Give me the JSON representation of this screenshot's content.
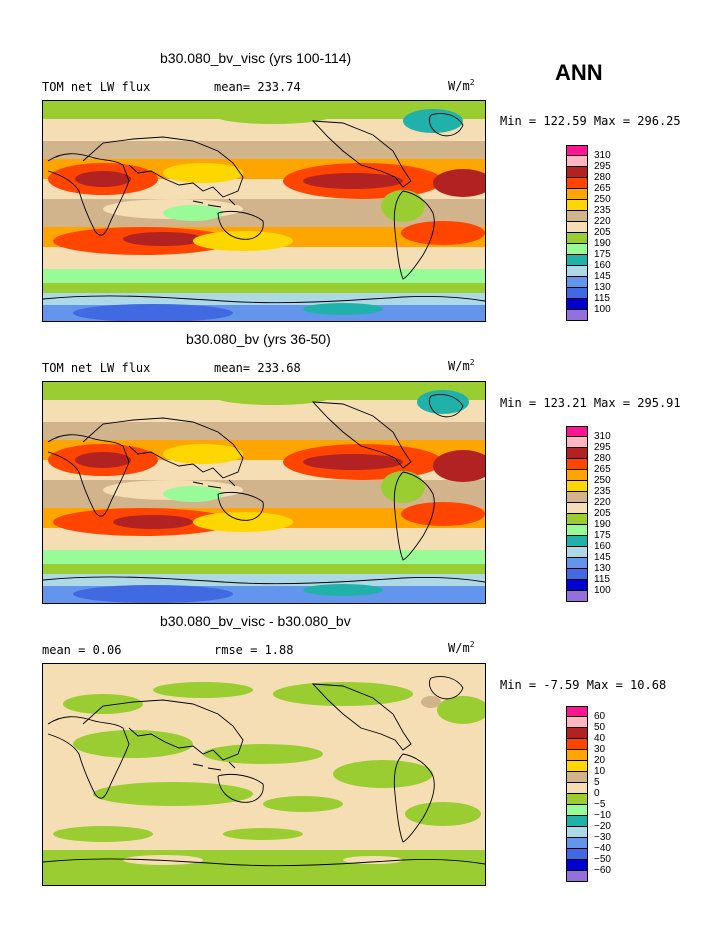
{
  "season": "ANN",
  "colors": {
    "c100": "#9370db",
    "c115": "#0000cd",
    "c130": "#4169e1",
    "c145": "#6495ed",
    "c160": "#add8e6",
    "c175": "#20b2aa",
    "c190": "#98fb98",
    "c205": "#9acd32",
    "c220": "#f5deb3",
    "c235": "#d2b48c",
    "c250": "#ffd700",
    "c265": "#ffa500",
    "c280": "#ff4500",
    "c295": "#b22222",
    "c310": "#ffb6c1",
    "c325": "#ff1493"
  },
  "panels": [
    {
      "title": "b30.080_bv_visc (yrs 100-114)",
      "variable": "TOM net LW flux",
      "stat_left": "mean= 233.74",
      "stat_right": "",
      "units": "W/m",
      "units_sup": "2",
      "minmax": "Min = 122.59 Max = 296.25",
      "legend_labels": [
        "310",
        "295",
        "280",
        "265",
        "250",
        "235",
        "220",
        "205",
        "190",
        "175",
        "160",
        "145",
        "130",
        "115",
        "100"
      ],
      "legend_colors": [
        "#ff1493",
        "#ffb6c1",
        "#b22222",
        "#ff4500",
        "#ffa500",
        "#ffd700",
        "#d2b48c",
        "#f5deb3",
        "#9acd32",
        "#98fb98",
        "#20b2aa",
        "#add8e6",
        "#6495ed",
        "#4169e1",
        "#0000cd",
        "#9370db"
      ]
    },
    {
      "title": "b30.080_bv (yrs 36-50)",
      "variable": "TOM net LW flux",
      "stat_left": "mean= 233.68",
      "stat_right": "",
      "units": "W/m",
      "units_sup": "2",
      "minmax": "Min = 123.21 Max = 295.91",
      "legend_labels": [
        "310",
        "295",
        "280",
        "265",
        "250",
        "235",
        "220",
        "205",
        "190",
        "175",
        "160",
        "145",
        "130",
        "115",
        "100"
      ],
      "legend_colors": [
        "#ff1493",
        "#ffb6c1",
        "#b22222",
        "#ff4500",
        "#ffa500",
        "#ffd700",
        "#d2b48c",
        "#f5deb3",
        "#9acd32",
        "#98fb98",
        "#20b2aa",
        "#add8e6",
        "#6495ed",
        "#4169e1",
        "#0000cd",
        "#9370db"
      ]
    },
    {
      "title": "b30.080_bv_visc - b30.080_bv",
      "variable": "",
      "stat_left": "mean =   0.06",
      "stat_right": "rmse =   1.88",
      "units": "W/m",
      "units_sup": "2",
      "minmax": "Min =  -7.59 Max =  10.68",
      "legend_labels": [
        "60",
        "50",
        "40",
        "30",
        "20",
        "10",
        "5",
        "0",
        "−5",
        "−10",
        "−20",
        "−30",
        "−40",
        "−50",
        "−60"
      ],
      "legend_colors": [
        "#ff1493",
        "#ffb6c1",
        "#b22222",
        "#ff4500",
        "#ffa500",
        "#ffd700",
        "#d2b48c",
        "#f5deb3",
        "#9acd32",
        "#98fb98",
        "#20b2aa",
        "#add8e6",
        "#6495ed",
        "#4169e1",
        "#0000cd",
        "#9370db"
      ]
    }
  ]
}
